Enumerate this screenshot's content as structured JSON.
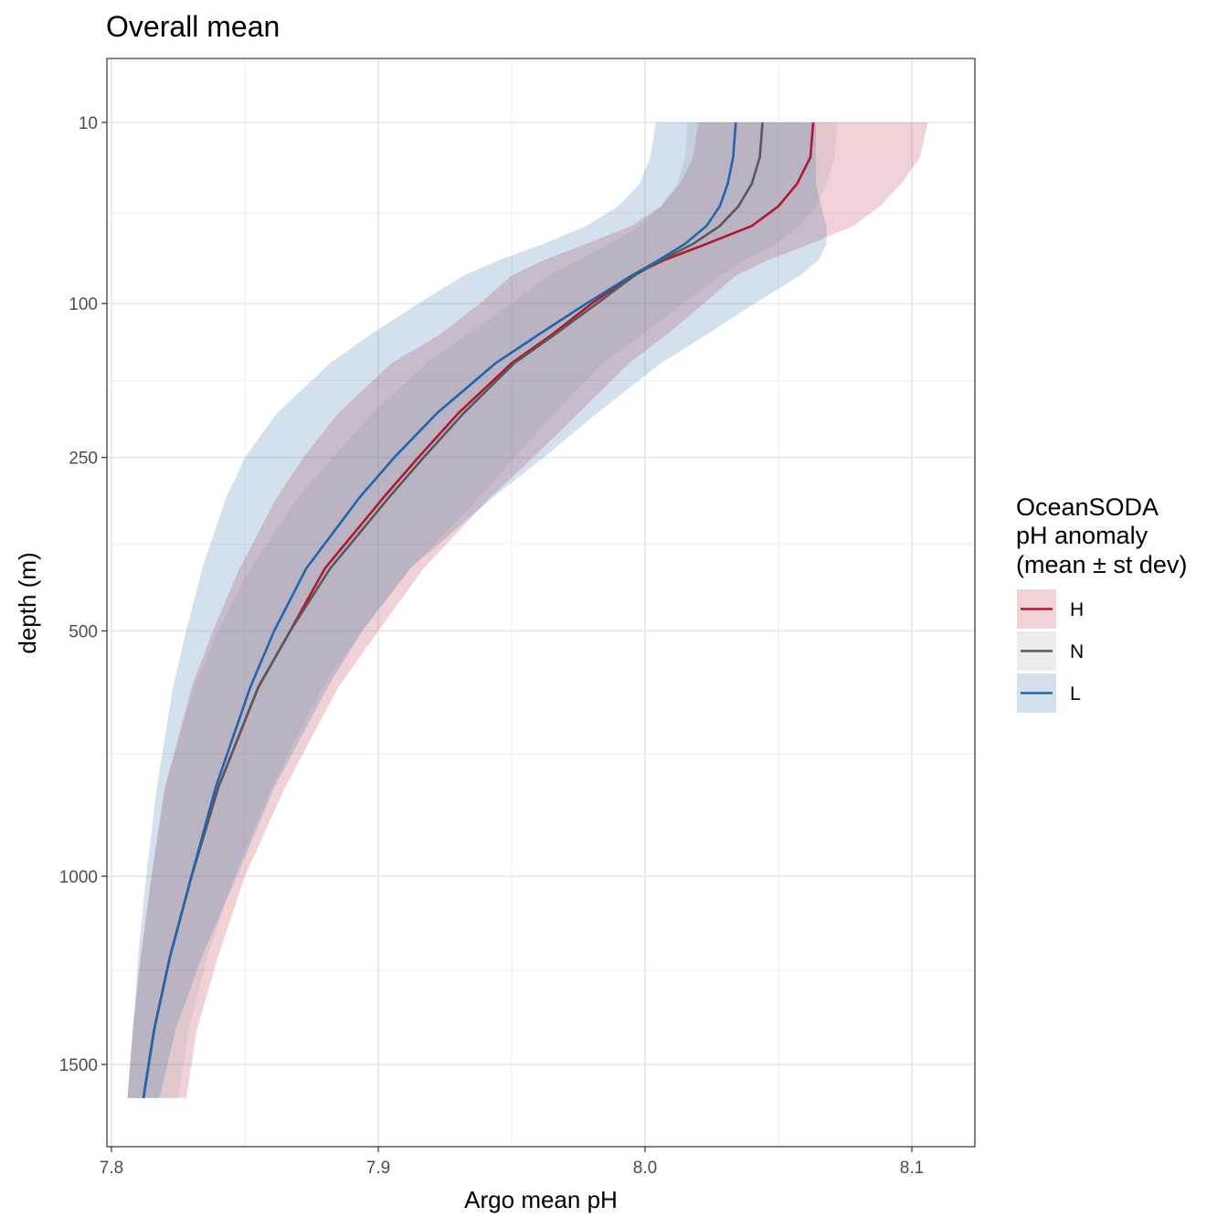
{
  "chart_data": {
    "type": "line",
    "title": "Overall mean",
    "xlabel": "Argo mean pH",
    "ylabel": "depth (m)",
    "xlim": [
      7.8,
      8.12
    ],
    "ylim": [
      1800,
      6
    ],
    "y_scale": "sqrt-reversed",
    "grid": true,
    "x_ticks": [
      7.8,
      7.9,
      8.0,
      8.1
    ],
    "x_tick_labels": [
      "7.8",
      "7.9",
      "8.0",
      "8.1"
    ],
    "y_ticks": [
      10,
      100,
      250,
      500,
      1000,
      1500
    ],
    "y_tick_labels": [
      "10",
      "100",
      "250",
      "500",
      "1000",
      "1500"
    ],
    "legend": {
      "title_lines": [
        "OceanSODA",
        "pH anomaly",
        "(mean ± st dev)"
      ],
      "position": "right"
    },
    "series": [
      {
        "name": "H",
        "color": "#b2182b",
        "fill": "#b2182b",
        "depth": [
          10,
          20,
          30,
          40,
          50,
          60,
          70,
          80,
          100,
          125,
          150,
          200,
          250,
          300,
          400,
          500,
          600,
          800,
          1000,
          1200,
          1400,
          1600
        ],
        "mean": [
          8.063,
          8.062,
          8.057,
          8.05,
          8.04,
          8.023,
          8.007,
          7.995,
          7.98,
          7.965,
          7.95,
          7.93,
          7.915,
          7.902,
          7.88,
          7.867,
          7.855,
          7.84,
          7.83,
          7.822,
          7.816,
          7.812
        ],
        "lower": [
          8.02,
          8.018,
          8.013,
          8.006,
          7.995,
          7.978,
          7.962,
          7.95,
          7.938,
          7.923,
          7.905,
          7.885,
          7.872,
          7.862,
          7.848,
          7.838,
          7.83,
          7.82,
          7.815,
          7.811,
          7.808,
          7.806
        ],
        "upper": [
          8.106,
          8.103,
          8.096,
          8.088,
          8.078,
          8.062,
          8.046,
          8.034,
          8.022,
          8.008,
          7.994,
          7.975,
          7.958,
          7.942,
          7.917,
          7.9,
          7.885,
          7.865,
          7.85,
          7.84,
          7.832,
          7.828
        ]
      },
      {
        "name": "N",
        "color": "#595959",
        "fill": "#9e9e9e",
        "depth": [
          10,
          20,
          30,
          40,
          50,
          60,
          70,
          80,
          100,
          125,
          150,
          200,
          250,
          300,
          400,
          500,
          600,
          800,
          1000,
          1200,
          1400,
          1600
        ],
        "mean": [
          8.044,
          8.043,
          8.04,
          8.035,
          8.028,
          8.018,
          8.006,
          7.996,
          7.982,
          7.966,
          7.951,
          7.932,
          7.917,
          7.904,
          7.882,
          7.867,
          7.855,
          7.84,
          7.83,
          7.822,
          7.816,
          7.812
        ],
        "lower": [
          8.016,
          8.015,
          8.012,
          8.006,
          7.998,
          7.987,
          7.975,
          7.964,
          7.95,
          7.933,
          7.918,
          7.898,
          7.883,
          7.87,
          7.852,
          7.84,
          7.831,
          7.82,
          7.815,
          7.811,
          7.808,
          7.806
        ],
        "upper": [
          8.072,
          8.071,
          8.068,
          8.064,
          8.058,
          8.049,
          8.037,
          8.028,
          8.014,
          7.999,
          7.984,
          7.966,
          7.951,
          7.938,
          7.912,
          7.894,
          7.879,
          7.86,
          7.846,
          7.836,
          7.829,
          7.825
        ]
      },
      {
        "name": "L",
        "color": "#2166ac",
        "fill": "#2166ac",
        "depth": [
          10,
          20,
          30,
          40,
          50,
          60,
          70,
          80,
          100,
          125,
          150,
          200,
          250,
          300,
          400,
          500,
          600,
          800,
          1000,
          1200,
          1400,
          1600
        ],
        "mean": [
          8.034,
          8.033,
          8.031,
          8.028,
          8.023,
          8.015,
          8.005,
          7.995,
          7.978,
          7.96,
          7.944,
          7.922,
          7.906,
          7.893,
          7.873,
          7.861,
          7.852,
          7.839,
          7.83,
          7.822,
          7.816,
          7.812
        ],
        "lower": [
          8.004,
          8.002,
          7.998,
          7.99,
          7.978,
          7.962,
          7.945,
          7.932,
          7.915,
          7.897,
          7.882,
          7.862,
          7.85,
          7.843,
          7.834,
          7.828,
          7.823,
          7.817,
          7.813,
          7.81,
          7.808,
          7.806
        ],
        "upper": [
          8.064,
          8.064,
          8.064,
          8.066,
          8.068,
          8.068,
          8.065,
          8.058,
          8.041,
          8.023,
          8.006,
          7.982,
          7.962,
          7.943,
          7.912,
          7.894,
          7.881,
          7.861,
          7.847,
          7.834,
          7.824,
          7.818
        ]
      }
    ]
  }
}
